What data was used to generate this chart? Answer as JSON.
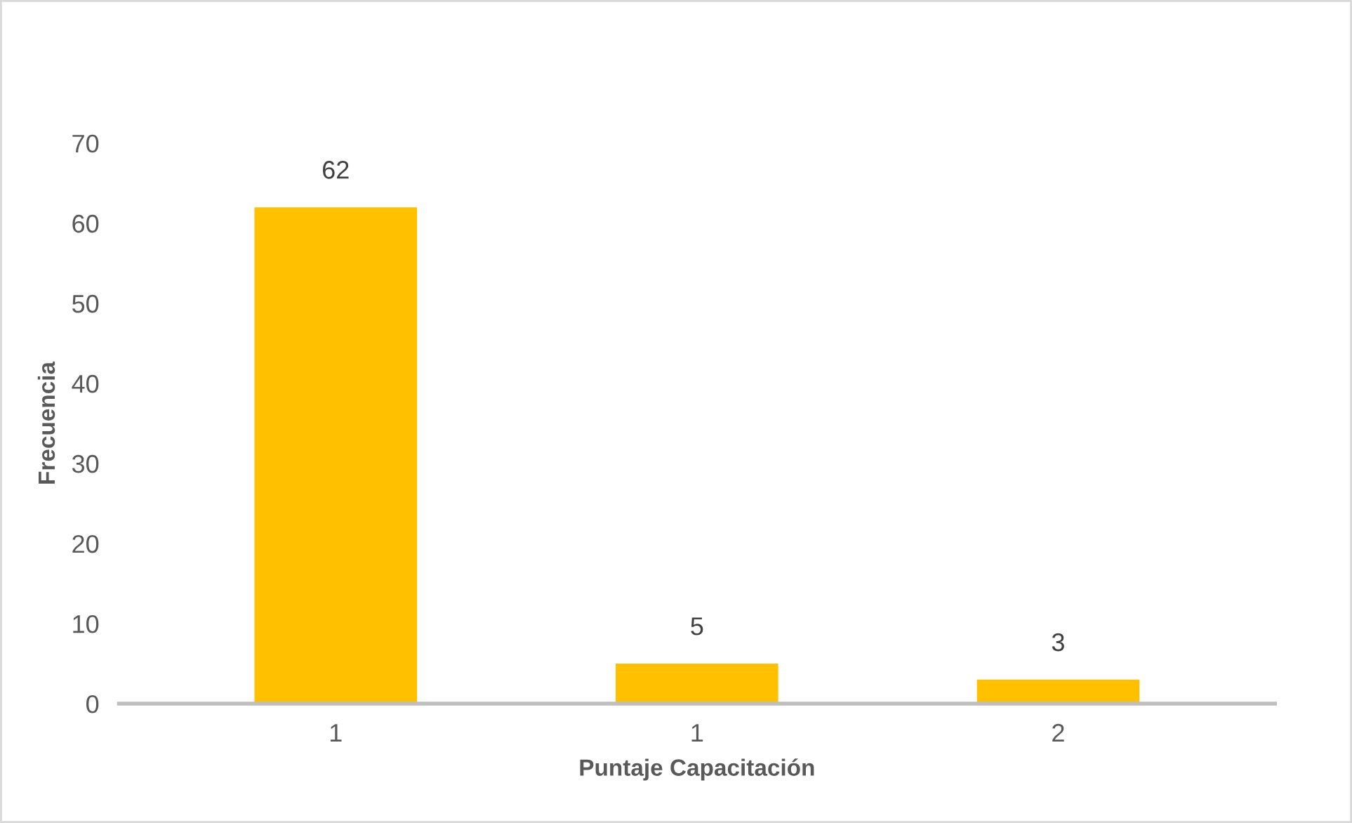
{
  "chart_data": {
    "type": "bar",
    "xlabel": "Puntaje Capacitación",
    "ylabel": "Frecuencia",
    "categories": [
      "1",
      "1",
      "2"
    ],
    "values": [
      62,
      5,
      3
    ],
    "color": "#ffc000",
    "ylim": [
      0,
      70
    ],
    "yticks": [
      0,
      10,
      20,
      30,
      40,
      50,
      60,
      70
    ],
    "grid": false,
    "data_labels": true
  }
}
